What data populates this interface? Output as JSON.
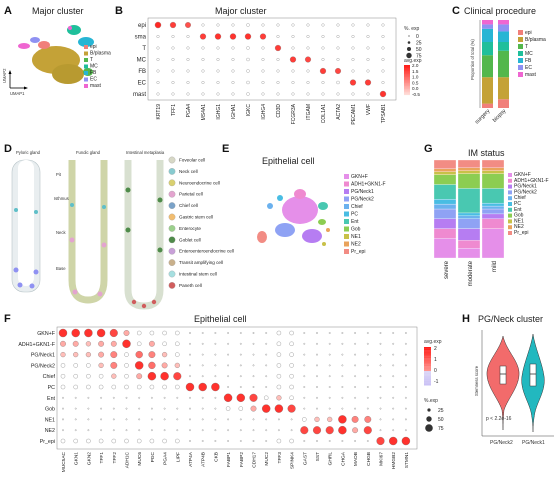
{
  "panels": {
    "A": {
      "label": "A",
      "title": "Major cluster",
      "axis_x": "UMAP1",
      "axis_y": "UMAP2",
      "legend": [
        "epi",
        "B/plasma",
        "T",
        "MC",
        "FB",
        "EC",
        "mast"
      ]
    },
    "B": {
      "label": "B",
      "title": "Major cluster",
      "size_legend_title": "%. exp",
      "size_legend_values": [
        "0",
        "25",
        "50",
        "75"
      ],
      "color_legend_title": "avg.exp",
      "color_legend_values": [
        "2.0",
        "1.5",
        "1.0",
        "0.5",
        "0.0",
        "-0.5"
      ]
    },
    "C": {
      "label": "C",
      "title": "Clinical procedure",
      "y_axis": "Proportion of total (%)",
      "categories": [
        "surgery",
        "biopsy"
      ],
      "legend": [
        "epi",
        "B/plasma",
        "T",
        "MC",
        "FB",
        "EC",
        "mast"
      ]
    },
    "D": {
      "label": "D",
      "columns": [
        "Pyloric gland",
        "Fundic gland",
        "Intestinal metaplasia"
      ],
      "regions": [
        "Pit",
        "Isthmus",
        "Neck",
        "Base"
      ],
      "legend": [
        "Foveolar cell",
        "Neck cell",
        "Neuroendocrine cell",
        "Parietal cell",
        "Chief cell",
        "Gastric stem cell",
        "Enterocyte",
        "Goblet cell",
        "Enteroenteroendocrine cell",
        "Transit amplifying cell",
        "Intestinal stem cell",
        "Paneth cell"
      ]
    },
    "E": {
      "label": "E",
      "title": "Epithelial cell",
      "legend": [
        "GKN+F",
        "ADH1+GKN1-F",
        "PG/Neck1",
        "PG/Neck2",
        "Chief",
        "PC",
        "Ent",
        "Gob",
        "NE1",
        "NE2",
        "Pr_epi"
      ]
    },
    "F": {
      "label": "F",
      "title": "Epithelial cell",
      "color_legend_title": "avg.exp",
      "color_legend_values": [
        "2",
        "1",
        "0",
        "-1"
      ],
      "size_legend_title": "%.exp",
      "size_legend_values": [
        "25",
        "50",
        "75"
      ]
    },
    "G": {
      "label": "G",
      "title": "IM status",
      "categories": [
        "severe",
        "moderate",
        "mild"
      ],
      "legend": [
        "GKN+F",
        "ADH1+GKN1-F",
        "PG/Neck1",
        "PG/Neck2",
        "Chief",
        "PC",
        "Ent",
        "Gob",
        "NE1",
        "NE2",
        "Pr_epi"
      ]
    },
    "H": {
      "label": "H",
      "title": "PG/Neck cluster",
      "y_axis": "Stemness score",
      "pvalue": "p < 2.2e-16",
      "categories": [
        "PG/Neck2",
        "PG/Neck1"
      ]
    }
  },
  "chart_data": [
    {
      "type": "heatmap",
      "panel": "B",
      "subtype": "dotplot",
      "rows": [
        "epi",
        "sma",
        "T",
        "MC",
        "FB",
        "EC",
        "mast"
      ],
      "columns": [
        "KRT19",
        "TFF1",
        "PGA4",
        "MS4A1",
        "IGHG1",
        "IGHA1",
        "IGKC",
        "IGHG4",
        "CD3D",
        "FCGR3A",
        "ITGAM",
        "COL1A1",
        "ACTA2",
        "PECAM1",
        "VWF",
        "TPSAB1"
      ],
      "values": [
        [
          0.95,
          0.85,
          0.75,
          0.05,
          0.05,
          0.05,
          0.1,
          0.05,
          0.05,
          0.05,
          0.05,
          0.05,
          0.05,
          0.05,
          0.05,
          0.05
        ],
        [
          0.05,
          0.05,
          0.05,
          0.85,
          0.9,
          0.9,
          0.9,
          0.85,
          0.05,
          0.05,
          0.05,
          0.05,
          0.05,
          0.05,
          0.05,
          0.05
        ],
        [
          0.05,
          0.05,
          0.05,
          0.05,
          0.05,
          0.05,
          0.1,
          0.05,
          0.85,
          0.05,
          0.05,
          0.05,
          0.05,
          0.05,
          0.05,
          0.05
        ],
        [
          0.05,
          0.05,
          0.05,
          0.05,
          0.05,
          0.05,
          0.1,
          0.05,
          0.05,
          0.85,
          0.8,
          0.05,
          0.05,
          0.05,
          0.05,
          0.05
        ],
        [
          0.05,
          0.05,
          0.05,
          0.05,
          0.05,
          0.05,
          0.1,
          0.05,
          0.05,
          0.05,
          0.05,
          0.85,
          0.8,
          0.05,
          0.05,
          0.05
        ],
        [
          0.05,
          0.05,
          0.05,
          0.05,
          0.05,
          0.05,
          0.1,
          0.05,
          0.05,
          0.05,
          0.05,
          0.05,
          0.1,
          0.85,
          0.85,
          0.05
        ],
        [
          0.05,
          0.05,
          0.05,
          0.05,
          0.05,
          0.05,
          0.1,
          0.05,
          0.05,
          0.05,
          0.05,
          0.05,
          0.05,
          0.05,
          0.05,
          0.9
        ]
      ]
    },
    {
      "type": "bar",
      "panel": "C",
      "stacked": true,
      "categories": [
        "surgery",
        "biopsy"
      ],
      "series": [
        {
          "name": "epi",
          "values": [
            5,
            10
          ]
        },
        {
          "name": "B/plasma",
          "values": [
            30,
            25
          ]
        },
        {
          "name": "T",
          "values": [
            25,
            30
          ]
        },
        {
          "name": "MC",
          "values": [
            15,
            10
          ]
        },
        {
          "name": "FB",
          "values": [
            15,
            12
          ]
        },
        {
          "name": "EC",
          "values": [
            5,
            8
          ]
        },
        {
          "name": "mast",
          "values": [
            5,
            5
          ]
        }
      ],
      "ylim": [
        0,
        100
      ]
    },
    {
      "type": "heatmap",
      "panel": "F",
      "subtype": "dotplot",
      "rows": [
        "GKN+F",
        "ADH1+GKN1-F",
        "PG/Neck1",
        "PG/Neck2",
        "Chief",
        "PC",
        "Ent",
        "Gob",
        "NE1",
        "NE2",
        "Pr_epi"
      ],
      "columns": [
        "MUC5AC",
        "GKN1",
        "GKN2",
        "TFF1",
        "TFF2",
        "ADH1C",
        "MUC6",
        "PGC",
        "PGA4",
        "LIPF",
        "ATP4A",
        "ATP4B",
        "CKB",
        "FABP1",
        "FABP2",
        "CDH17",
        "MUC2",
        "TFF3",
        "SPINK4",
        "GAST",
        "SST",
        "GHRL",
        "CHGA",
        "MAOB",
        "CHGB",
        "MKI67",
        "HMGB2",
        "STMN1"
      ],
      "values": [
        [
          0.9,
          0.9,
          0.9,
          0.9,
          0.8,
          0.3,
          0.1,
          0.1,
          0.1,
          0.1,
          0,
          0,
          0,
          0,
          0,
          0,
          0,
          0.1,
          0.1,
          0,
          0,
          0,
          0,
          0,
          0,
          0,
          0,
          0
        ],
        [
          0.3,
          0.3,
          0.2,
          0.3,
          0.3,
          0.9,
          0.1,
          0.3,
          0.1,
          0.1,
          0,
          0,
          0,
          0,
          0,
          0,
          0,
          0.1,
          0.1,
          0,
          0,
          0,
          0,
          0,
          0,
          0,
          0,
          0
        ],
        [
          0.2,
          0.2,
          0.2,
          0.3,
          0.5,
          0.1,
          0.6,
          0.5,
          0.2,
          0.1,
          0,
          0,
          0,
          0,
          0,
          0,
          0,
          0.1,
          0.1,
          0,
          0,
          0,
          0,
          0,
          0,
          0,
          0,
          0
        ],
        [
          0.1,
          0.1,
          0.1,
          0.2,
          0.5,
          0.1,
          0.9,
          0.6,
          0.3,
          0.2,
          0,
          0,
          0,
          0,
          0,
          0,
          0,
          0.1,
          0.1,
          0,
          0,
          0,
          0,
          0,
          0,
          0,
          0,
          0
        ],
        [
          0.1,
          0.1,
          0.1,
          0.1,
          0.2,
          0.1,
          0.3,
          0.9,
          0.9,
          0.8,
          0,
          0,
          0,
          0,
          0,
          0,
          0,
          0.1,
          0.1,
          0,
          0,
          0,
          0,
          0,
          0,
          0,
          0,
          0
        ],
        [
          0.1,
          0.1,
          0.1,
          0.1,
          0.1,
          0.1,
          0.1,
          0.1,
          0.1,
          0.1,
          0.9,
          0.9,
          0.9,
          0,
          0,
          0,
          0,
          0.1,
          0.1,
          0,
          0,
          0,
          0,
          0,
          0,
          0,
          0,
          0
        ],
        [
          0,
          0,
          0,
          0,
          0,
          0,
          0,
          0,
          0,
          0,
          0,
          0,
          0,
          0.9,
          0.9,
          0.8,
          0.1,
          0.2,
          0.1,
          0,
          0,
          0,
          0,
          0,
          0,
          0,
          0,
          0
        ],
        [
          0,
          0,
          0,
          0,
          0,
          0,
          0,
          0,
          0,
          0,
          0,
          0,
          0,
          0.1,
          0.1,
          0.3,
          0.9,
          0.9,
          0.8,
          0,
          0,
          0,
          0,
          0,
          0,
          0,
          0,
          0
        ],
        [
          0,
          0,
          0,
          0,
          0,
          0,
          0,
          0,
          0,
          0,
          0,
          0,
          0,
          0,
          0,
          0,
          0,
          0,
          0,
          0.1,
          0.2,
          0.2,
          0.9,
          0.5,
          0.5,
          0,
          0,
          0
        ],
        [
          0,
          0,
          0,
          0,
          0,
          0,
          0,
          0,
          0,
          0,
          0,
          0,
          0,
          0,
          0,
          0,
          0,
          0,
          0,
          0.8,
          0.8,
          0.8,
          0.9,
          0.3,
          0.8,
          0,
          0,
          0
        ],
        [
          0.1,
          0.1,
          0.1,
          0.1,
          0.1,
          0.1,
          0.1,
          0.1,
          0.1,
          0.1,
          0,
          0,
          0,
          0,
          0,
          0,
          0,
          0.1,
          0.1,
          0,
          0,
          0,
          0,
          0,
          0,
          0.8,
          0.9,
          0.9
        ]
      ]
    },
    {
      "type": "bar",
      "panel": "G",
      "stacked": true,
      "categories": [
        "severe",
        "moderate",
        "mild"
      ],
      "series": [
        {
          "name": "GKN+F",
          "values": [
            20,
            10,
            30
          ]
        },
        {
          "name": "ADH1+GKN1-F",
          "values": [
            10,
            8,
            10
          ]
        },
        {
          "name": "PG/Neck1",
          "values": [
            10,
            12,
            5
          ]
        },
        {
          "name": "PG/Neck2",
          "values": [
            10,
            10,
            5
          ]
        },
        {
          "name": "Chief",
          "values": [
            5,
            3,
            3
          ]
        },
        {
          "name": "PC",
          "values": [
            5,
            3,
            3
          ]
        },
        {
          "name": "Ent",
          "values": [
            15,
            25,
            15
          ]
        },
        {
          "name": "Gob",
          "values": [
            10,
            15,
            15
          ]
        },
        {
          "name": "NE1",
          "values": [
            3,
            3,
            3
          ]
        },
        {
          "name": "NE2",
          "values": [
            3,
            3,
            3
          ]
        },
        {
          "name": "Pr_epi",
          "values": [
            9,
            8,
            8
          ]
        }
      ],
      "ylim": [
        0,
        100
      ]
    }
  ],
  "colors": {
    "epi": "#f17f7a",
    "B/plasma": "#c4a237",
    "T": "#53b74c",
    "MC": "#1fbf9b",
    "FB": "#27b5d4",
    "EC": "#8f91f2",
    "mast": "#ef66d1",
    "GKN+F": "#e58fe9",
    "ADH1+GKN1-F": "#ef8ad0",
    "PG/Neck1": "#b67df2",
    "PG/Neck2": "#8fa2f4",
    "Chief": "#6bb1ee",
    "PC": "#49bde3",
    "Ent": "#49c8b1",
    "Gob": "#8ccd52",
    "NE1": "#c8c148",
    "NE2": "#e9a35b",
    "Pr_epi": "#f28c84"
  }
}
